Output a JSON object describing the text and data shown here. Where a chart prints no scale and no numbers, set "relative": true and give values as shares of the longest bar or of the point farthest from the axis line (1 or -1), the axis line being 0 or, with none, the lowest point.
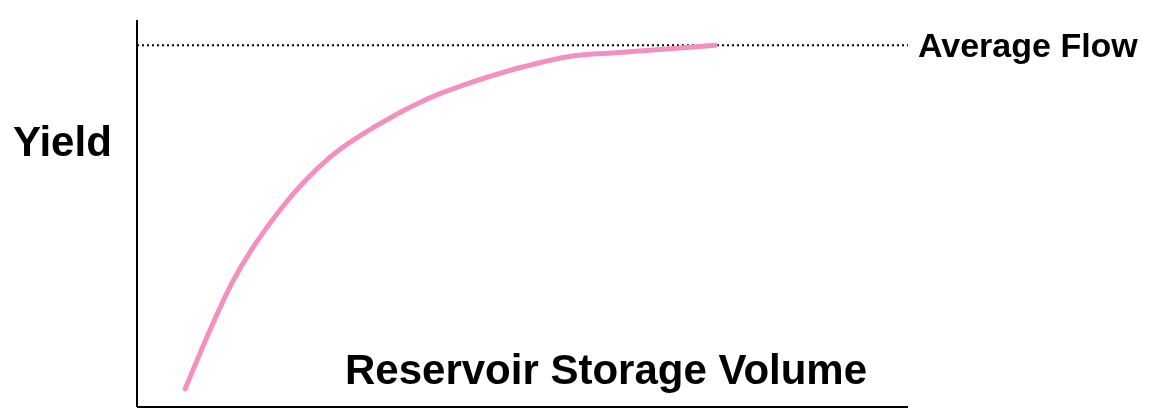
{
  "chart_data": {
    "type": "line",
    "relative": true,
    "ylabel": "Yield",
    "xlabel": "Reservoir Storage Volume",
    "categories": [
      null,
      null,
      null,
      null,
      null,
      null,
      null,
      null,
      null,
      null,
      null,
      null,
      null,
      null,
      null,
      null,
      null
    ],
    "series": [
      {
        "color": "#f48fc1",
        "values": [
          null,
          0.05,
          0.35,
          0.55,
          0.69,
          0.78,
          0.85,
          0.9,
          0.94,
          0.97,
          0.98,
          0.99,
          1,
          null,
          null,
          null,
          null
        ]
      }
    ],
    "ref_lines": [
      {
        "axis": "y",
        "value": 1,
        "label": "Average Flow",
        "color": "#000000",
        "line_style": "dotted"
      }
    ],
    "grid": false,
    "legend": false,
    "marker": "none"
  }
}
